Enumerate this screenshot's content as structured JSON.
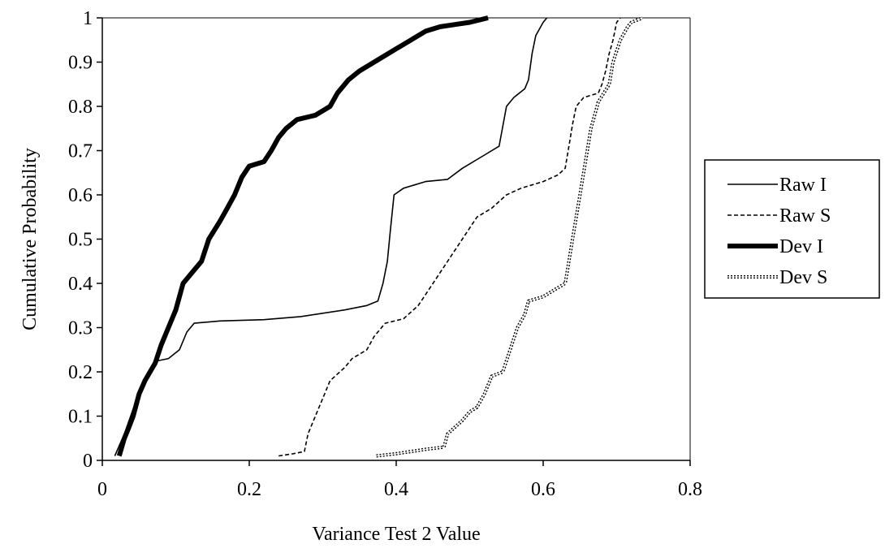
{
  "chart_data": {
    "type": "line",
    "title": "",
    "xlabel": "Variance Test 2 Value",
    "ylabel": "Cumulative Probability",
    "xlim": [
      0,
      0.8
    ],
    "ylim": [
      0,
      1
    ],
    "x_ticks": [
      0,
      0.2,
      0.4,
      0.6,
      0.8
    ],
    "x_tick_labels": [
      "0",
      "0.2",
      "0.4",
      "0.6",
      "0.8"
    ],
    "y_ticks": [
      0,
      0.1,
      0.2,
      0.3,
      0.4,
      0.5,
      0.6,
      0.7,
      0.8,
      0.9,
      1
    ],
    "y_tick_labels": [
      "0",
      "0.1",
      "0.2",
      "0.3",
      "0.4",
      "0.5",
      "0.6",
      "0.7",
      "0.8",
      "0.9",
      "1"
    ],
    "grid": false,
    "legend_position": "right",
    "series": [
      {
        "name": "Raw I",
        "style": "solid-thin",
        "color": "#000000",
        "points": [
          [
            0.017,
            0.01
          ],
          [
            0.03,
            0.06
          ],
          [
            0.045,
            0.13
          ],
          [
            0.055,
            0.17
          ],
          [
            0.065,
            0.2
          ],
          [
            0.075,
            0.225
          ],
          [
            0.09,
            0.23
          ],
          [
            0.105,
            0.25
          ],
          [
            0.115,
            0.29
          ],
          [
            0.125,
            0.31
          ],
          [
            0.16,
            0.315
          ],
          [
            0.22,
            0.318
          ],
          [
            0.27,
            0.325
          ],
          [
            0.33,
            0.34
          ],
          [
            0.36,
            0.35
          ],
          [
            0.375,
            0.36
          ],
          [
            0.382,
            0.4
          ],
          [
            0.388,
            0.45
          ],
          [
            0.392,
            0.52
          ],
          [
            0.397,
            0.6
          ],
          [
            0.41,
            0.615
          ],
          [
            0.44,
            0.63
          ],
          [
            0.47,
            0.635
          ],
          [
            0.49,
            0.66
          ],
          [
            0.52,
            0.69
          ],
          [
            0.54,
            0.71
          ],
          [
            0.55,
            0.8
          ],
          [
            0.56,
            0.82
          ],
          [
            0.575,
            0.84
          ],
          [
            0.58,
            0.86
          ],
          [
            0.585,
            0.92
          ],
          [
            0.59,
            0.96
          ],
          [
            0.6,
            0.99
          ],
          [
            0.605,
            1.0
          ]
        ]
      },
      {
        "name": "Raw S",
        "style": "dashed",
        "color": "#000000",
        "points": [
          [
            0.24,
            0.01
          ],
          [
            0.26,
            0.015
          ],
          [
            0.275,
            0.02
          ],
          [
            0.28,
            0.06
          ],
          [
            0.29,
            0.1
          ],
          [
            0.3,
            0.14
          ],
          [
            0.31,
            0.18
          ],
          [
            0.33,
            0.21
          ],
          [
            0.34,
            0.23
          ],
          [
            0.36,
            0.25
          ],
          [
            0.37,
            0.28
          ],
          [
            0.385,
            0.31
          ],
          [
            0.41,
            0.32
          ],
          [
            0.43,
            0.35
          ],
          [
            0.45,
            0.4
          ],
          [
            0.47,
            0.45
          ],
          [
            0.49,
            0.5
          ],
          [
            0.51,
            0.55
          ],
          [
            0.53,
            0.57
          ],
          [
            0.55,
            0.6
          ],
          [
            0.57,
            0.615
          ],
          [
            0.6,
            0.63
          ],
          [
            0.62,
            0.645
          ],
          [
            0.63,
            0.66
          ],
          [
            0.635,
            0.71
          ],
          [
            0.64,
            0.76
          ],
          [
            0.645,
            0.8
          ],
          [
            0.655,
            0.82
          ],
          [
            0.675,
            0.83
          ],
          [
            0.68,
            0.85
          ],
          [
            0.685,
            0.88
          ],
          [
            0.69,
            0.92
          ],
          [
            0.695,
            0.95
          ],
          [
            0.7,
            0.99
          ],
          [
            0.705,
            1.0
          ]
        ]
      },
      {
        "name": "Dev I",
        "style": "solid-thick",
        "color": "#000000",
        "points": [
          [
            0.023,
            0.01
          ],
          [
            0.03,
            0.05
          ],
          [
            0.035,
            0.07
          ],
          [
            0.042,
            0.1
          ],
          [
            0.05,
            0.15
          ],
          [
            0.058,
            0.18
          ],
          [
            0.065,
            0.2
          ],
          [
            0.072,
            0.22
          ],
          [
            0.08,
            0.26
          ],
          [
            0.09,
            0.3
          ],
          [
            0.1,
            0.34
          ],
          [
            0.11,
            0.4
          ],
          [
            0.12,
            0.42
          ],
          [
            0.135,
            0.45
          ],
          [
            0.145,
            0.5
          ],
          [
            0.16,
            0.54
          ],
          [
            0.17,
            0.57
          ],
          [
            0.18,
            0.6
          ],
          [
            0.19,
            0.64
          ],
          [
            0.2,
            0.665
          ],
          [
            0.22,
            0.675
          ],
          [
            0.23,
            0.7
          ],
          [
            0.24,
            0.73
          ],
          [
            0.25,
            0.75
          ],
          [
            0.265,
            0.77
          ],
          [
            0.29,
            0.78
          ],
          [
            0.31,
            0.8
          ],
          [
            0.32,
            0.83
          ],
          [
            0.335,
            0.86
          ],
          [
            0.35,
            0.88
          ],
          [
            0.37,
            0.9
          ],
          [
            0.4,
            0.93
          ],
          [
            0.42,
            0.95
          ],
          [
            0.44,
            0.97
          ],
          [
            0.46,
            0.98
          ],
          [
            0.48,
            0.985
          ],
          [
            0.5,
            0.99
          ],
          [
            0.525,
            1.0
          ]
        ]
      },
      {
        "name": "Dev S",
        "style": "dotted-double",
        "color": "#000000",
        "points": [
          [
            0.373,
            0.01
          ],
          [
            0.4,
            0.015
          ],
          [
            0.44,
            0.025
          ],
          [
            0.465,
            0.03
          ],
          [
            0.47,
            0.06
          ],
          [
            0.49,
            0.09
          ],
          [
            0.5,
            0.11
          ],
          [
            0.51,
            0.12
          ],
          [
            0.52,
            0.15
          ],
          [
            0.53,
            0.19
          ],
          [
            0.545,
            0.2
          ],
          [
            0.555,
            0.25
          ],
          [
            0.565,
            0.3
          ],
          [
            0.575,
            0.33
          ],
          [
            0.58,
            0.36
          ],
          [
            0.6,
            0.37
          ],
          [
            0.62,
            0.39
          ],
          [
            0.63,
            0.4
          ],
          [
            0.635,
            0.45
          ],
          [
            0.64,
            0.5
          ],
          [
            0.645,
            0.55
          ],
          [
            0.65,
            0.6
          ],
          [
            0.655,
            0.65
          ],
          [
            0.66,
            0.7
          ],
          [
            0.665,
            0.75
          ],
          [
            0.67,
            0.78
          ],
          [
            0.675,
            0.81
          ],
          [
            0.69,
            0.85
          ],
          [
            0.695,
            0.9
          ],
          [
            0.705,
            0.95
          ],
          [
            0.715,
            0.98
          ],
          [
            0.72,
            0.99
          ],
          [
            0.735,
            1.0
          ]
        ]
      }
    ]
  }
}
